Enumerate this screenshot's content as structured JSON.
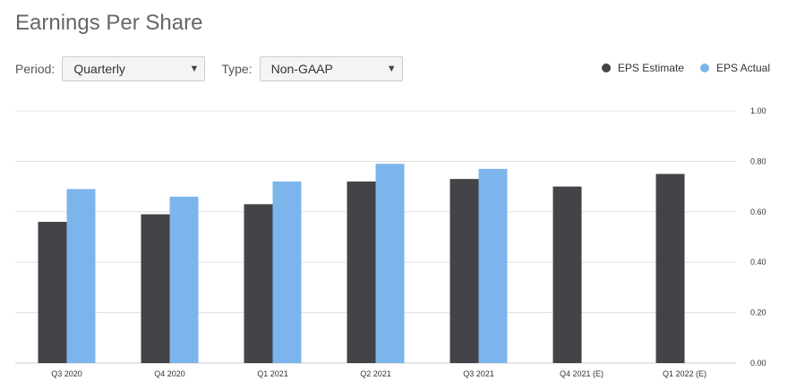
{
  "title": "Earnings Per Share",
  "controls": {
    "period_label": "Period:",
    "period_value": "Quarterly",
    "type_label": "Type:",
    "type_value": "Non-GAAP"
  },
  "colors": {
    "estimate": "#434348",
    "actual": "#7cb5ec",
    "grid": "#e0e0e0"
  },
  "chart_data": {
    "type": "bar",
    "categories": [
      "Q3 2020",
      "Q4 2020",
      "Q1 2021",
      "Q2 2021",
      "Q3 2021",
      "Q4 2021 (E)",
      "Q1 2022 (E)"
    ],
    "series": [
      {
        "name": "EPS Estimate",
        "values": [
          0.56,
          0.59,
          0.63,
          0.72,
          0.73,
          0.7,
          0.75
        ]
      },
      {
        "name": "EPS Actual",
        "values": [
          0.69,
          0.66,
          0.72,
          0.79,
          0.77,
          null,
          null
        ]
      }
    ],
    "yticks": [
      "1.00",
      "0.80",
      "0.60",
      "0.40",
      "0.20",
      "0.00"
    ],
    "ylim": [
      0,
      1
    ],
    "grid": true,
    "legend_position": "top-right"
  }
}
